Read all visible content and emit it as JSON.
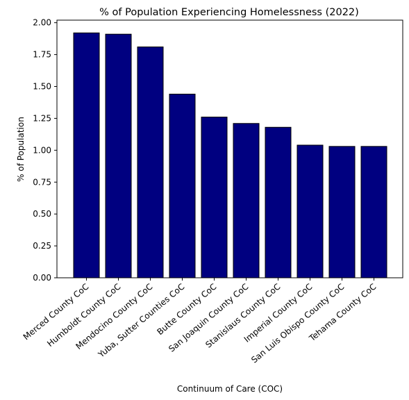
{
  "chart_data": {
    "type": "bar",
    "title": "% of Population Experiencing Homelessness (2022)",
    "xlabel": "Continuum of Care (COC)",
    "ylabel": "% of Population",
    "categories": [
      "Merced County CoC",
      "Humboldt County CoC",
      "Mendocino County CoC",
      "Yuba, Sutter Counties CoC",
      "Butte County CoC",
      "San Joaquin County CoC",
      "Stanislaus County CoC",
      "Imperial County CoC",
      "San Luis Obispo County CoC",
      "Tehama County CoC"
    ],
    "values": [
      1.92,
      1.91,
      1.81,
      1.44,
      1.26,
      1.21,
      1.18,
      1.04,
      1.03,
      1.03
    ],
    "ylim": [
      0,
      2.02
    ],
    "yticks": [
      "0.00",
      "0.25",
      "0.50",
      "0.75",
      "1.00",
      "1.25",
      "1.50",
      "1.75",
      "2.00"
    ],
    "grid": false,
    "bar_color": "#000080",
    "edge_color": "#000000"
  }
}
